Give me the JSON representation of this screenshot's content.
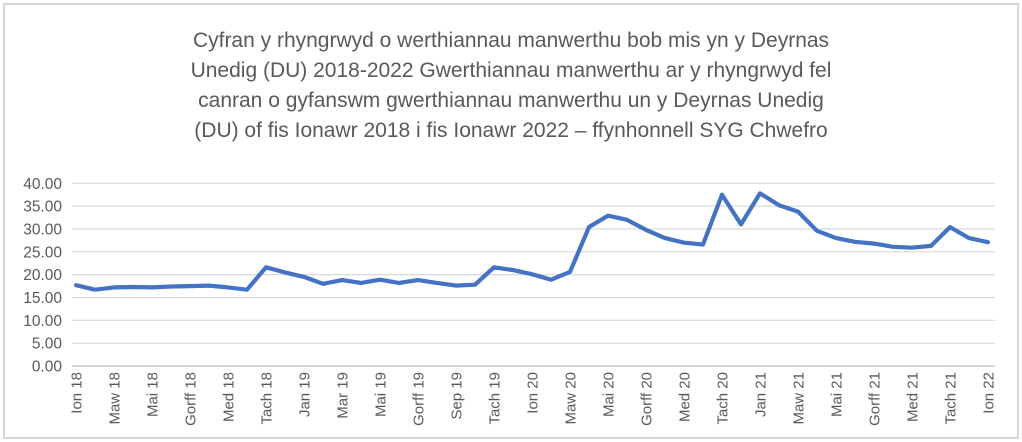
{
  "header": {
    "title_full": "Cyfran y rhyngrwyd o werthiannau manwerthu bob mis yn y Deyrnas Unedig (DU) 2018-2022 Gwerthiannau manwerthu ar y rhyngrwyd fel canran o gyfanswm gwerthiannau manwerthu un y Deyrnas Unedig (DU) of fis Ionawr 2018 i fis Ionawr 2022 – ffynhonnell SYG Chwefro",
    "title_lines": [
      "Cyfran y rhyngrwyd o werthiannau manwerthu bob mis yn y Deyrnas",
      "Unedig (DU) 2018-2022 Gwerthiannau manwerthu ar y rhyngrwyd fel",
      "canran o gyfanswm gwerthiannau manwerthu un y Deyrnas Unedig",
      "(DU) of fis Ionawr 2018 i fis Ionawr 2022 – ffynhonnell SYG Chwefro"
    ]
  },
  "chart_data": {
    "type": "line",
    "title": "Cyfran y rhyngrwyd o werthiannau manwerthu bob mis yn y Deyrnas Unedig (DU) 2018-2022",
    "x_range": "Ionawr 2018 to Ionawr 2022, monthly (49 points)",
    "x_tick_labels": [
      "Ion 18",
      "Maw 18",
      "Mai 18",
      "Gorff 18",
      "Med 18",
      "Tach 18",
      "Jan 19",
      "Mar 19",
      "Mai 19",
      "Gorff 19",
      "Sep 19",
      "Tach 19",
      "Ion 20",
      "Maw 20",
      "Mai 20",
      "Gorff 20",
      "Med 20",
      "Tach 20",
      "Jan 21",
      "Maw 21",
      "Mai 21",
      "Gorff 21",
      "Med 21",
      "Tach 21",
      "Ion 22"
    ],
    "x_tick_every": 2,
    "values": [
      17.7,
      16.7,
      17.2,
      17.3,
      17.2,
      17.4,
      17.5,
      17.6,
      17.2,
      16.7,
      21.6,
      20.5,
      19.5,
      18.0,
      18.8,
      18.2,
      18.9,
      18.2,
      18.8,
      18.2,
      17.6,
      17.8,
      21.6,
      21.0,
      20.1,
      18.9,
      20.6,
      30.4,
      32.9,
      32.0,
      29.8,
      28.0,
      27.0,
      26.6,
      37.5,
      31.0,
      37.8,
      35.2,
      33.8,
      29.6,
      28.0,
      27.2,
      26.8,
      26.1,
      25.9,
      26.3,
      30.4,
      28.0,
      27.1
    ],
    "y_ticks": [
      0,
      5,
      10,
      15,
      20,
      25,
      30,
      35,
      40
    ],
    "y_tick_format": "two_decimals",
    "ylim": [
      0,
      40
    ],
    "grid": "horizontal",
    "legend": "none",
    "colors": {
      "line": "#4472C4",
      "gridline": "#D9D9D9",
      "axis_line": "#BFBFBF",
      "tick_label": "#595959",
      "title": "#595959",
      "frame_border": "#D8D8D8"
    }
  }
}
